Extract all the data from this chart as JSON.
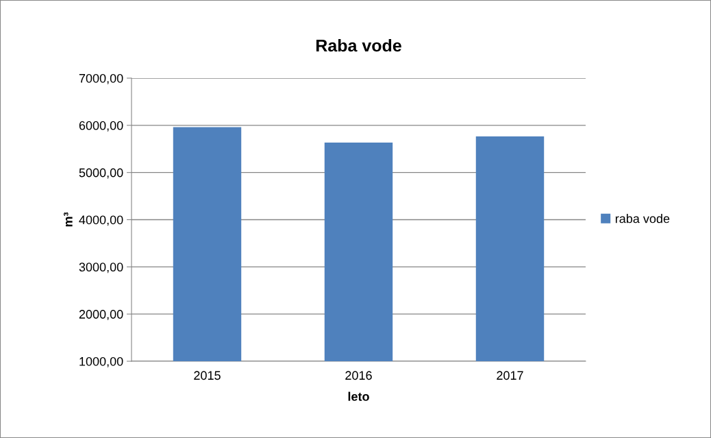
{
  "chart_data": {
    "type": "bar",
    "title": "Raba vode",
    "xlabel": "leto",
    "ylabel": "m³",
    "categories": [
      "2015",
      "2016",
      "2017"
    ],
    "series": [
      {
        "name": "raba vode",
        "color": "#4f81bd",
        "values": [
          5960,
          5635,
          5765
        ]
      }
    ],
    "ylim": [
      1000,
      7000
    ],
    "yticks": [
      {
        "value": 1000,
        "label": "1000,00"
      },
      {
        "value": 2000,
        "label": "2000,00"
      },
      {
        "value": 3000,
        "label": "3000,00"
      },
      {
        "value": 4000,
        "label": "4000,00"
      },
      {
        "value": 5000,
        "label": "5000,00"
      },
      {
        "value": 6000,
        "label": "6000,00"
      },
      {
        "value": 7000,
        "label": "7000,00"
      }
    ],
    "grid": "y",
    "legend": "right"
  }
}
